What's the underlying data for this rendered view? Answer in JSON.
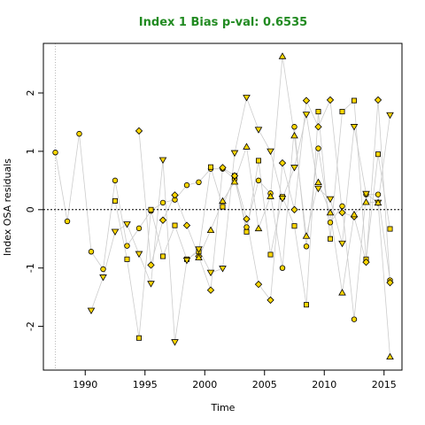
{
  "chart_data": {
    "type": "scatter",
    "title": "Index 1 Bias p-val: 0.6535",
    "title_color": "#228B22",
    "xlabel": "Time",
    "ylabel": "Index OSA residuals",
    "xlim": [
      1986.5,
      2016.5
    ],
    "ylim": [
      -2.75,
      2.85
    ],
    "x_ticks": [
      1990,
      1995,
      2000,
      2005,
      2010,
      2015
    ],
    "y_ticks": [
      -2,
      -1,
      0,
      1,
      2
    ],
    "y_tick_labels": [
      "-2",
      "-1",
      "0",
      "1",
      "2"
    ],
    "reference_line_y": 0,
    "reference_line_x": 1987.5,
    "grid": false,
    "point_color": "#FFD700",
    "line_color": "#cccccc",
    "series": [
      {
        "marker": "circle",
        "points": [
          [
            1987.5,
            0.98
          ],
          [
            1988.5,
            -0.2
          ],
          [
            1989.5,
            1.3
          ],
          [
            1990.5,
            -0.72
          ],
          [
            1991.5,
            -1.02
          ],
          [
            1992.5,
            0.5
          ],
          [
            1993.5,
            -0.62
          ],
          [
            1994.5,
            -0.32
          ],
          [
            1995.5,
            -0.02
          ],
          [
            1996.5,
            0.12
          ],
          [
            1997.5,
            0.17
          ],
          [
            1998.5,
            0.42
          ],
          [
            1999.5,
            0.47
          ],
          [
            2000.5,
            0.7
          ],
          [
            2001.5,
            0.7
          ],
          [
            2002.5,
            0.52
          ],
          [
            2003.5,
            -0.3
          ],
          [
            2004.5,
            0.5
          ],
          [
            2005.5,
            0.28
          ],
          [
            2006.5,
            -1.0
          ],
          [
            2007.5,
            1.42
          ],
          [
            2008.5,
            -0.63
          ],
          [
            2009.5,
            1.05
          ],
          [
            2010.5,
            -0.22
          ],
          [
            2011.5,
            0.06
          ],
          [
            2012.5,
            -1.88
          ],
          [
            2013.5,
            0.26
          ],
          [
            2014.5,
            0.26
          ],
          [
            2015.5,
            -1.21
          ]
        ]
      },
      {
        "marker": "square",
        "points": [
          [
            1992.5,
            0.15
          ],
          [
            1993.5,
            -0.85
          ],
          [
            1994.5,
            -2.2
          ],
          [
            1995.5,
            0.0
          ],
          [
            1996.5,
            -0.8
          ],
          [
            1997.5,
            -0.27
          ],
          [
            1998.5,
            -0.85
          ],
          [
            1999.5,
            -0.72
          ],
          [
            2000.5,
            0.73
          ],
          [
            2001.5,
            0.05
          ],
          [
            2002.5,
            0.58
          ],
          [
            2003.5,
            -0.38
          ],
          [
            2004.5,
            0.84
          ],
          [
            2005.5,
            -0.77
          ],
          [
            2006.5,
            0.22
          ],
          [
            2007.5,
            -0.28
          ],
          [
            2008.5,
            -1.63
          ],
          [
            2009.5,
            1.68
          ],
          [
            2010.5,
            -0.5
          ],
          [
            2011.5,
            1.68
          ],
          [
            2012.5,
            1.87
          ],
          [
            2013.5,
            -0.85
          ],
          [
            2014.5,
            0.95
          ],
          [
            2015.5,
            -0.33
          ]
        ]
      },
      {
        "marker": "diamond",
        "points": [
          [
            1994.5,
            1.35
          ],
          [
            1995.5,
            -0.95
          ],
          [
            1996.5,
            -0.18
          ],
          [
            1997.5,
            0.25
          ],
          [
            1998.5,
            -0.27
          ],
          [
            1999.5,
            -0.8
          ],
          [
            2000.5,
            -1.38
          ],
          [
            2001.5,
            0.72
          ],
          [
            2002.5,
            0.58
          ],
          [
            2003.5,
            -0.16
          ],
          [
            2004.5,
            -1.28
          ],
          [
            2005.5,
            -1.55
          ],
          [
            2006.5,
            0.8
          ],
          [
            2007.5,
            0.0
          ],
          [
            2008.5,
            1.87
          ],
          [
            2009.5,
            1.42
          ],
          [
            2010.5,
            1.88
          ],
          [
            2011.5,
            -0.05
          ],
          [
            2012.5,
            -0.12
          ],
          [
            2013.5,
            -0.9
          ],
          [
            2014.5,
            1.88
          ],
          [
            2015.5,
            -1.25
          ]
        ]
      },
      {
        "marker": "triangle-down",
        "points": [
          [
            1990.5,
            -1.73
          ],
          [
            1991.5,
            -1.16
          ],
          [
            1992.5,
            -0.38
          ],
          [
            1993.5,
            -0.25
          ],
          [
            1994.5,
            -0.76
          ],
          [
            1995.5,
            -1.27
          ],
          [
            1996.5,
            0.85
          ],
          [
            1997.5,
            -2.27
          ],
          [
            1998.5,
            -0.87
          ],
          [
            1999.5,
            -0.68
          ],
          [
            2000.5,
            -1.08
          ],
          [
            2001.5,
            -1.01
          ],
          [
            2002.5,
            0.97
          ],
          [
            2003.5,
            1.92
          ],
          [
            2004.5,
            1.37
          ],
          [
            2005.5,
            1.0
          ],
          [
            2006.5,
            0.19
          ],
          [
            2007.5,
            0.72
          ],
          [
            2008.5,
            1.63
          ],
          [
            2009.5,
            0.36
          ],
          [
            2010.5,
            0.18
          ],
          [
            2011.5,
            -0.58
          ],
          [
            2012.5,
            1.42
          ],
          [
            2013.5,
            0.27
          ],
          [
            2014.5,
            0.12
          ],
          [
            2015.5,
            1.62
          ]
        ]
      },
      {
        "marker": "triangle-up",
        "points": [
          [
            1999.5,
            -0.82
          ],
          [
            2000.5,
            -0.35
          ],
          [
            2001.5,
            0.15
          ],
          [
            2002.5,
            0.48
          ],
          [
            2003.5,
            1.08
          ],
          [
            2004.5,
            -0.32
          ],
          [
            2005.5,
            0.23
          ],
          [
            2006.5,
            2.63
          ],
          [
            2007.5,
            1.27
          ],
          [
            2008.5,
            -0.45
          ],
          [
            2009.5,
            0.47
          ],
          [
            2010.5,
            -0.05
          ],
          [
            2011.5,
            -1.42
          ],
          [
            2012.5,
            -0.08
          ],
          [
            2013.5,
            0.13
          ],
          [
            2014.5,
            0.12
          ],
          [
            2015.5,
            -2.52
          ]
        ]
      }
    ]
  }
}
